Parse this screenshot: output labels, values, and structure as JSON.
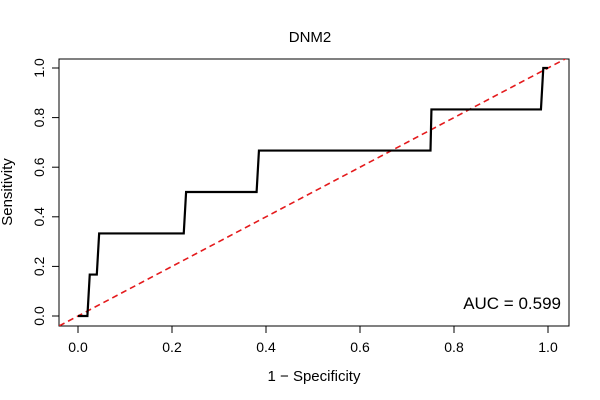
{
  "chart_data": {
    "type": "line",
    "title": "DNM2",
    "xlabel": "1 − Specificity",
    "ylabel": "Sensitivity",
    "xlim": [
      0,
      1
    ],
    "ylim": [
      0,
      1
    ],
    "x_ticks": [
      "0.0",
      "0.2",
      "0.4",
      "0.6",
      "0.8",
      "1.0"
    ],
    "y_ticks": [
      "0.0",
      "0.2",
      "0.4",
      "0.6",
      "0.8",
      "1.0"
    ],
    "annotation": "AUC = 0.599",
    "series": [
      {
        "name": "ROC curve",
        "color": "#000000",
        "style": "solid",
        "points": [
          [
            0.0,
            0.0
          ],
          [
            0.02,
            0.0
          ],
          [
            0.025,
            0.167
          ],
          [
            0.04,
            0.167
          ],
          [
            0.045,
            0.333
          ],
          [
            0.225,
            0.333
          ],
          [
            0.23,
            0.5
          ],
          [
            0.38,
            0.5
          ],
          [
            0.385,
            0.667
          ],
          [
            0.75,
            0.667
          ],
          [
            0.752,
            0.833
          ],
          [
            0.985,
            0.833
          ],
          [
            0.99,
            1.0
          ],
          [
            1.0,
            1.0
          ]
        ]
      },
      {
        "name": "Reference (chance)",
        "color": "#e41a1c",
        "style": "dashed",
        "points": [
          [
            -0.04,
            -0.04
          ],
          [
            1.04,
            1.04
          ]
        ]
      }
    ]
  }
}
